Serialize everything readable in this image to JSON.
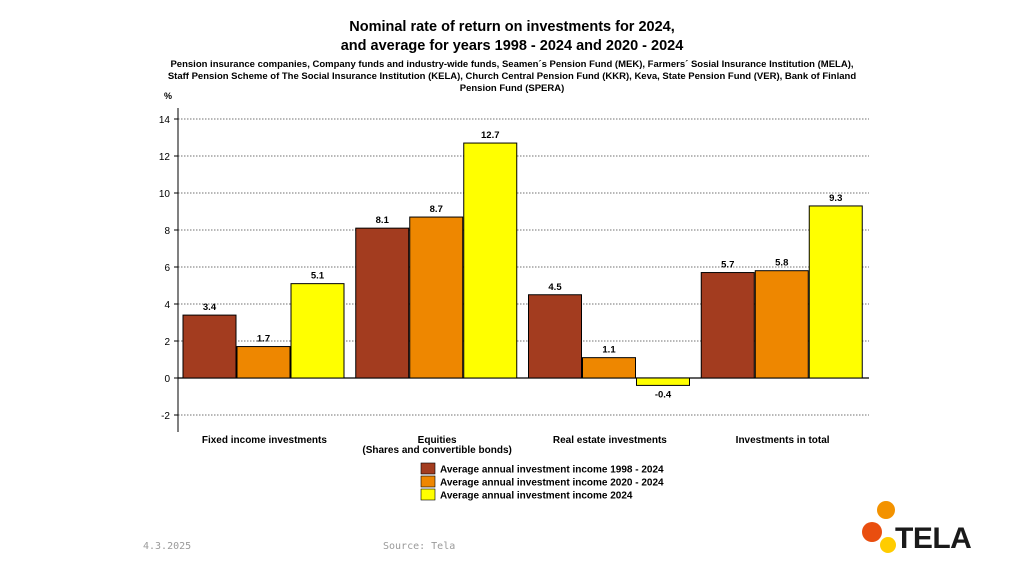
{
  "chart_data": {
    "type": "bar",
    "title_lines": [
      "Nominal rate of return on investments for 2024,",
      "and average for years 1998 - 2024 and 2020 - 2024"
    ],
    "subtitle": "Pension insurance companies, Company funds and industry-wide funds, Seamen´s Pension Fund (MEK), Farmers´ Sosial Insurance Institution (MELA),  Staff Pension Scheme of The Social Insurance Institution (KELA), Church Central Pension Fund (KKR), Keva, State Pension Fund (VER), Bank of Finland Pension Fund (SPERA)",
    "ylabel": "%",
    "ylim": [
      -3,
      14
    ],
    "yticks": [
      -2,
      0,
      2,
      4,
      6,
      8,
      10,
      12,
      14
    ],
    "grid": true,
    "legend_position": "bottom",
    "categories": [
      {
        "label": "Fixed income investments",
        "sublabel": ""
      },
      {
        "label": "Equities",
        "sublabel": "(Shares and convertible bonds)"
      },
      {
        "label": "Real estate investments",
        "sublabel": ""
      },
      {
        "label": "Investments  in total",
        "sublabel": ""
      }
    ],
    "series": [
      {
        "name": "Average annual investment income 1998 - 2024",
        "color": "#a33c1f",
        "values": [
          3.4,
          8.1,
          4.5,
          5.7
        ]
      },
      {
        "name": "Average annual investment income 2020 - 2024",
        "color": "#ee8700",
        "values": [
          1.7,
          8.7,
          1.1,
          5.8
        ]
      },
      {
        "name": "Average annual investment income 2024",
        "color": "#ffff00",
        "values": [
          5.1,
          12.7,
          -0.4,
          9.3
        ]
      }
    ]
  },
  "footer": {
    "date": "4.3.2025",
    "source": "Source: Tela"
  },
  "logo": {
    "text": "TELA",
    "colors": [
      "#f39200",
      "#e94e0f",
      "#ffcc00"
    ]
  }
}
